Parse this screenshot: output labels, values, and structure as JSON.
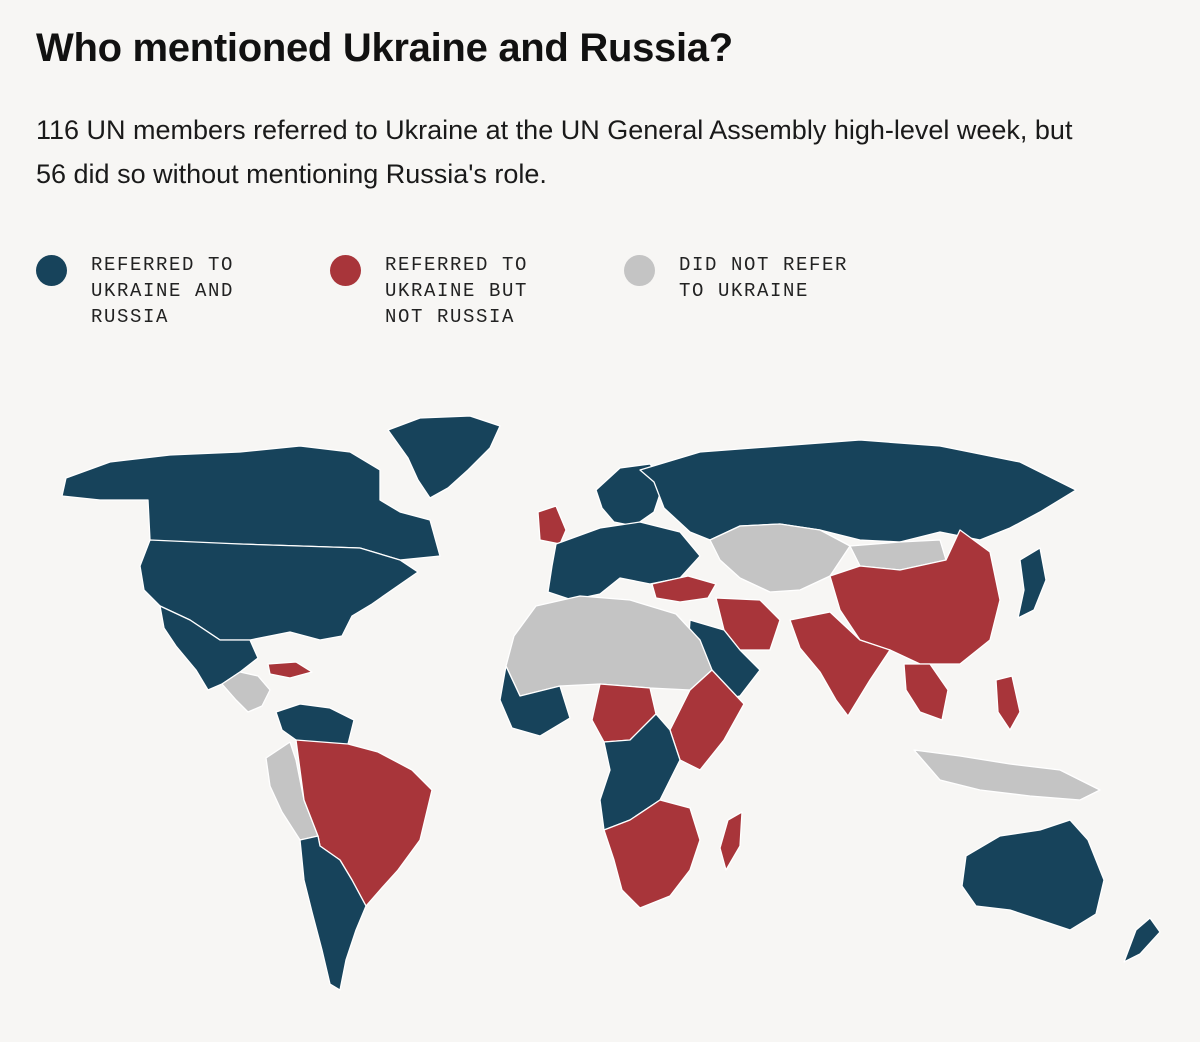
{
  "title": "Who mentioned Ukraine and Russia?",
  "subtitle": "116 UN members referred to Ukraine at the UN General Assembly high-level week, but 56 did so without mentioning Russia's role.",
  "legend": [
    {
      "key": "both",
      "label": "Referred to Ukraine and Russia",
      "color": "#17435b"
    },
    {
      "key": "ukraine_only",
      "label": "Referred to Ukraine but not Russia",
      "color": "#a8353a"
    },
    {
      "key": "none",
      "label": "Did not refer to Ukraine",
      "color": "#c4c4c4"
    }
  ],
  "colors": {
    "both": "#17435b",
    "ukraine_only": "#a8353a",
    "none": "#c4c4c4",
    "background": "#f7f6f4"
  }
}
